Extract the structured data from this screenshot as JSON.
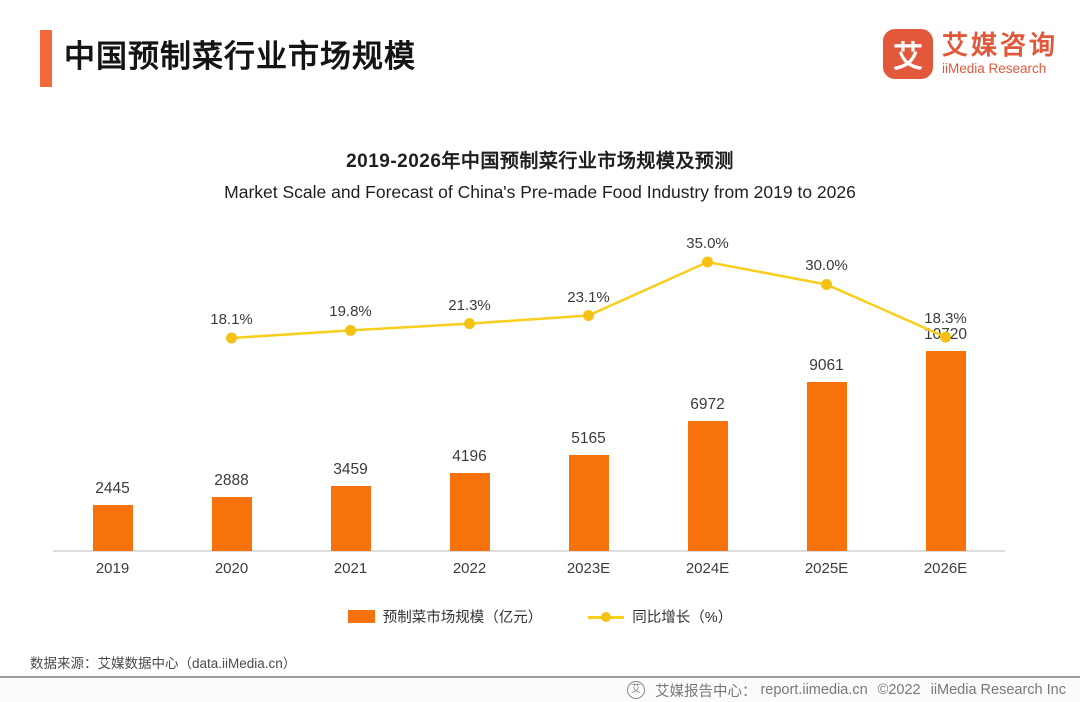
{
  "header": {
    "title": "中国预制菜行业市场规模"
  },
  "logo": {
    "glyph": "艾",
    "name_cn": "艾媒咨询",
    "name_en": "iiMedia Research"
  },
  "chart_data": {
    "type": "bar",
    "combo": "bar+line",
    "title": "2019-2026年中国预制菜行业市场规模及预测",
    "subtitle": "Market Scale and Forecast of China's Pre-made Food Industry from 2019 to 2026",
    "categories": [
      "2019",
      "2020",
      "2021",
      "2022",
      "2023E",
      "2024E",
      "2025E",
      "2026E"
    ],
    "series": [
      {
        "name": "预制菜市场规模（亿元）",
        "type": "bar",
        "color": "#F7720B",
        "values": [
          2445,
          2888,
          3459,
          4196,
          5165,
          6972,
          9061,
          10720
        ]
      },
      {
        "name": "同比增长（%）",
        "type": "line",
        "color": "#F9CE1D",
        "marker_color": "#F5C214",
        "values": [
          null,
          18.1,
          19.8,
          21.3,
          23.1,
          35.0,
          30.0,
          18.3
        ],
        "labels": [
          "",
          "18.1%",
          "19.8%",
          "21.3%",
          "23.1%",
          "35.0%",
          "30.0%",
          "18.3%"
        ]
      }
    ],
    "legend_position": "bottom",
    "gridlines": false,
    "y_axis_visible": false,
    "xlabel": "",
    "ylabel": ""
  },
  "footer": {
    "source": "数据来源：艾媒数据中心（data.iiMedia.cn）",
    "bottom_bar": {
      "icon_glyph": "艾",
      "site_label": "艾媒报告中心：",
      "site_url": "report.iimedia.cn",
      "copyright": "©2022",
      "company": "iiMedia Research  Inc"
    }
  },
  "colors": {
    "accent_orange": "#F2693B",
    "bar_orange": "#F7720B",
    "brand_red_orange": "#E2583A",
    "line_yellow": "#F9CE1D",
    "axis_gray": "#DEDEDE"
  }
}
